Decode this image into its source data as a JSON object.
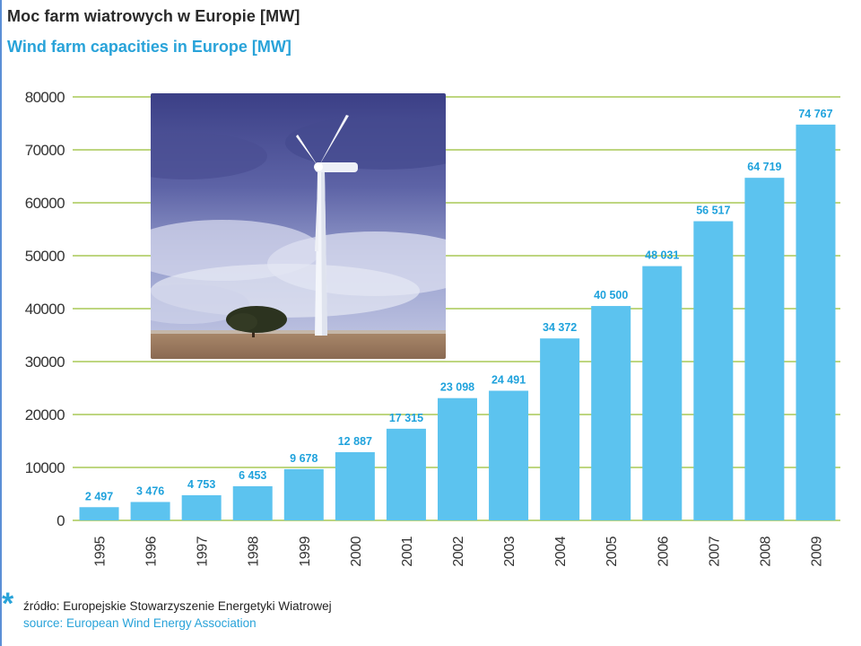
{
  "header": {
    "title_pl": "Moc farm wiatrowych w Europie [MW]",
    "title_en": "Wind farm capacities in Europe [MW]"
  },
  "chart_data": {
    "type": "bar",
    "title": "Moc farm wiatrowych w Europie [MW]",
    "subtitle": "Wind farm capacities in Europe [MW]",
    "xlabel": "",
    "ylabel": "",
    "categories": [
      "1995",
      "1996",
      "1997",
      "1998",
      "1999",
      "2000",
      "2001",
      "2002",
      "2003",
      "2004",
      "2005",
      "2006",
      "2007",
      "2008",
      "2009"
    ],
    "values": [
      2497,
      3476,
      4753,
      6453,
      9678,
      12887,
      17315,
      23098,
      24491,
      34372,
      40500,
      48031,
      56517,
      64719,
      74767
    ],
    "value_labels": [
      "2 497",
      "3 476",
      "4 753",
      "6 453",
      "9 678",
      "12 887",
      "17 315",
      "23 098",
      "24 491",
      "34 372",
      "40 500",
      "48 031",
      "56 517",
      "64 719",
      "74 767"
    ],
    "yticks": [
      "0",
      "10000",
      "20000",
      "30000",
      "40000",
      "50000",
      "60000",
      "70000",
      "80000"
    ],
    "ylim": [
      0,
      80000
    ],
    "grid": true,
    "colors": {
      "bar": "#5cc3ef",
      "grid": "#a8c957",
      "label": "#1fa2dc"
    }
  },
  "image": {
    "name": "wind-turbine-photo"
  },
  "footer": {
    "marker": "*",
    "source_pl": "źródło: Europejskie Stowarzyszenie Energetyki Wiatrowej",
    "source_en": "source: European Wind Energy Association"
  }
}
